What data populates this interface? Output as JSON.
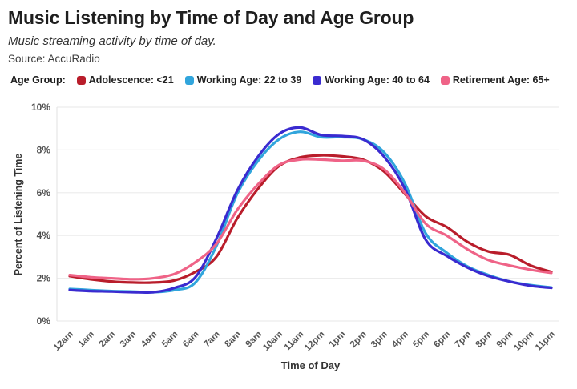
{
  "header": {
    "title": "Music Listening by Time of Day and Age Group",
    "subtitle": "Music streaming activity by time of day.",
    "source": "Source: AccuRadio"
  },
  "legend": {
    "label": "Age Group:",
    "items": [
      {
        "label": "Adolescence: <21",
        "color": "#B91D2B"
      },
      {
        "label": "Working Age: 22 to 39",
        "color": "#31A5DC"
      },
      {
        "label": "Working Age: 40 to 64",
        "color": "#3A2BD0"
      },
      {
        "label": "Retirement Age: 65+",
        "color": "#EF6387"
      }
    ]
  },
  "chart_data": {
    "type": "line",
    "title": "Music Listening by Time of Day and Age Group",
    "xlabel": "Time of Day",
    "ylabel": "Percent of Listening Time",
    "ylim": [
      0,
      10
    ],
    "yticks": [
      {
        "value": 0,
        "label": "0%"
      },
      {
        "value": 2,
        "label": "2%"
      },
      {
        "value": 4,
        "label": "4%"
      },
      {
        "value": 6,
        "label": "6%"
      },
      {
        "value": 8,
        "label": "8%"
      },
      {
        "value": 10,
        "label": "10%"
      }
    ],
    "grid": "horizontal",
    "legend_position": "top",
    "x": [
      "12am",
      "1am",
      "2am",
      "3am",
      "4am",
      "5am",
      "6am",
      "7am",
      "8am",
      "9am",
      "10am",
      "11am",
      "12pm",
      "1pm",
      "2pm",
      "3pm",
      "4pm",
      "5pm",
      "6pm",
      "7pm",
      "8pm",
      "9pm",
      "10pm",
      "11pm"
    ],
    "series": [
      {
        "name": "Adolescence: <21",
        "color": "#B91D2B",
        "values": [
          2.1,
          1.95,
          1.85,
          1.8,
          1.8,
          1.9,
          2.3,
          3.0,
          4.8,
          6.2,
          7.25,
          7.65,
          7.75,
          7.7,
          7.55,
          7.0,
          5.95,
          4.9,
          4.4,
          3.7,
          3.25,
          3.1,
          2.6,
          2.3
        ]
      },
      {
        "name": "Working Age: 22 to 39",
        "color": "#31A5DC",
        "values": [
          1.5,
          1.45,
          1.4,
          1.38,
          1.35,
          1.45,
          1.8,
          3.5,
          5.95,
          7.5,
          8.5,
          8.85,
          8.6,
          8.6,
          8.5,
          7.9,
          6.45,
          4.1,
          3.2,
          2.55,
          2.15,
          1.85,
          1.68,
          1.57
        ]
      },
      {
        "name": "Working Age: 40 to 64",
        "color": "#3A2BD0",
        "values": [
          1.45,
          1.4,
          1.38,
          1.35,
          1.35,
          1.55,
          2.05,
          3.85,
          6.1,
          7.7,
          8.75,
          9.05,
          8.7,
          8.65,
          8.5,
          7.7,
          6.2,
          3.8,
          3.05,
          2.5,
          2.1,
          1.85,
          1.65,
          1.55
        ]
      },
      {
        "name": "Retirement Age: 65+",
        "color": "#EF6387",
        "values": [
          2.15,
          2.05,
          2.0,
          1.95,
          2.0,
          2.2,
          2.75,
          3.6,
          5.2,
          6.4,
          7.3,
          7.55,
          7.55,
          7.5,
          7.5,
          7.1,
          6.0,
          4.55,
          4.0,
          3.35,
          2.85,
          2.6,
          2.4,
          2.25
        ]
      }
    ]
  }
}
